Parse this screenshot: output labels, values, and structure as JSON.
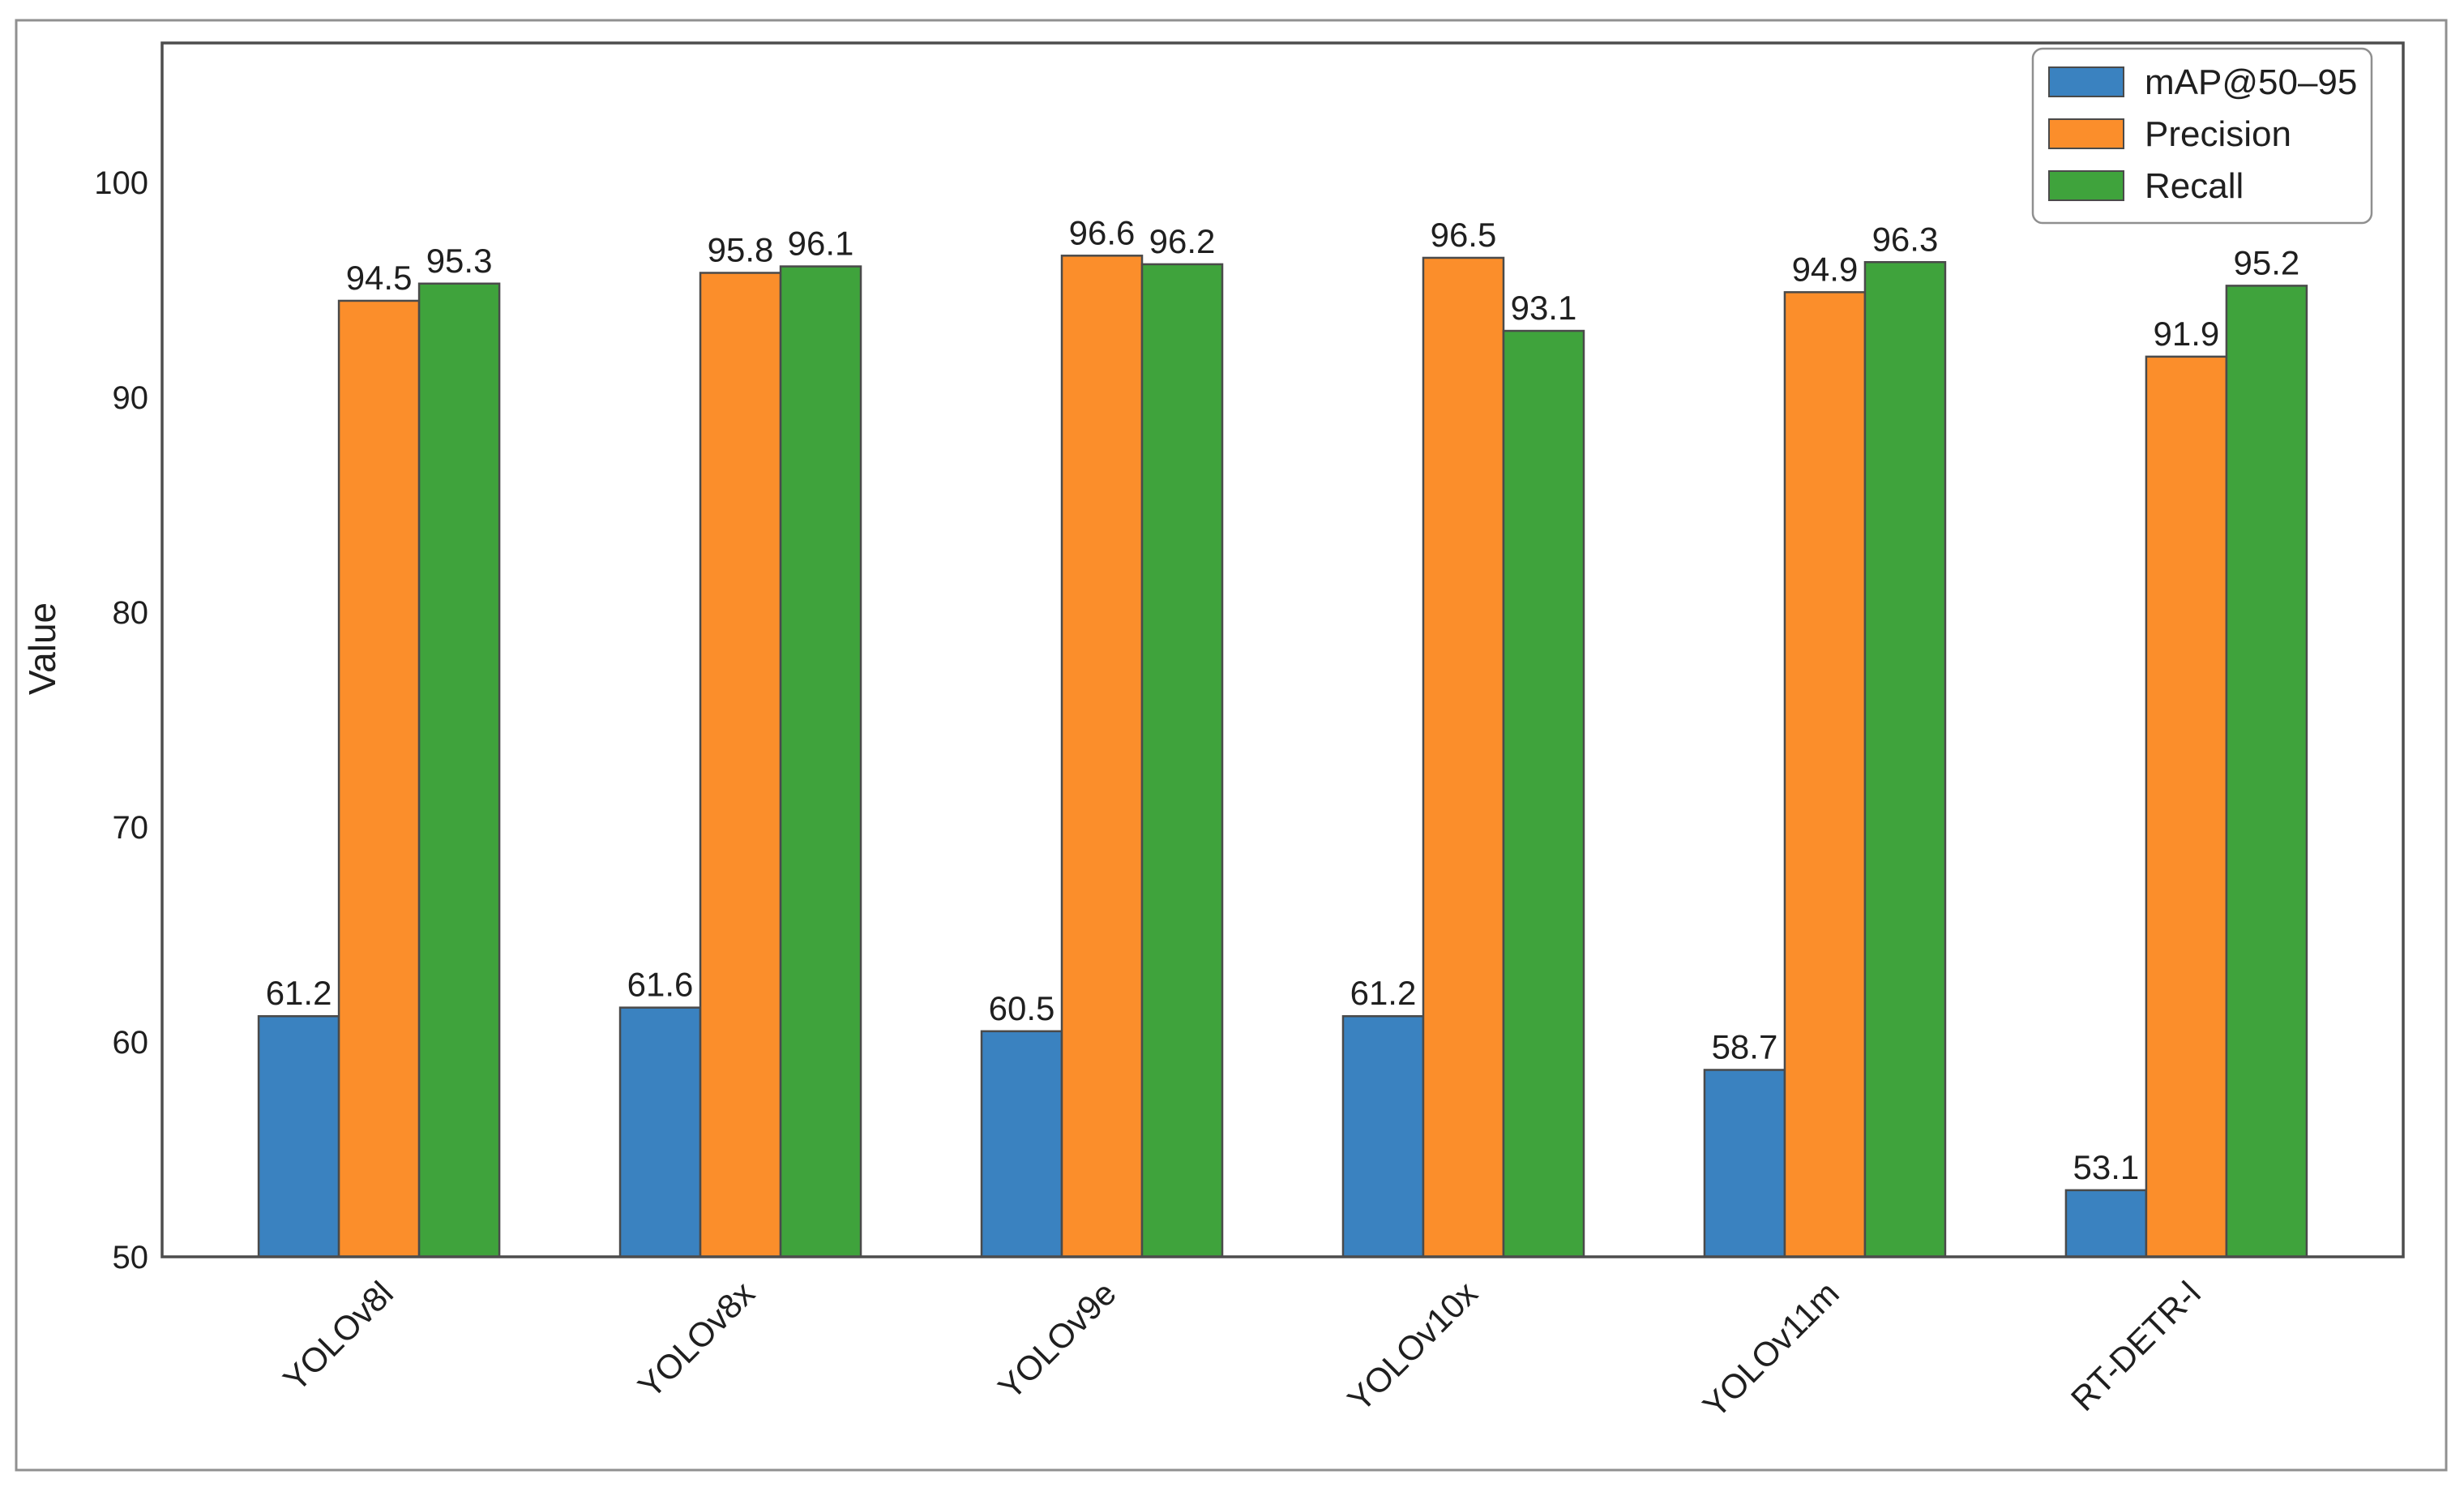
{
  "figure": {
    "background": "#ffffff",
    "frame_color": "#909090"
  },
  "chart_data": {
    "type": "bar",
    "title": "",
    "xlabel": "",
    "ylabel": "Value",
    "categories": [
      "YOLOv8l",
      "YOLOv8x",
      "YOLOv9e",
      "YOLOv10x",
      "YOLOv11m",
      "RT-DETR-l"
    ],
    "series": [
      {
        "name": "mAP@50–95",
        "color": "#3A82C0",
        "values": [
          61.2,
          61.6,
          60.5,
          61.2,
          58.7,
          53.1
        ]
      },
      {
        "name": "Precision",
        "color": "#FB8E2B",
        "values": [
          94.5,
          95.8,
          96.6,
          96.5,
          94.9,
          91.9
        ]
      },
      {
        "name": "Recall",
        "color": "#3FA33C",
        "values": [
          95.3,
          96.1,
          96.2,
          93.1,
          96.3,
          95.2
        ]
      }
    ],
    "value_labels": true,
    "value_label_format": "0.1f",
    "bar_edge_color": "#4A4A4A",
    "axis_color": "#4D4D4D",
    "text_color": "#1F1F1F",
    "ylim": [
      50,
      106.5
    ],
    "yticks": [
      50,
      60,
      70,
      80,
      90,
      100
    ],
    "xtick_rotation": 45,
    "grid": false,
    "legend_position": "upper right"
  }
}
